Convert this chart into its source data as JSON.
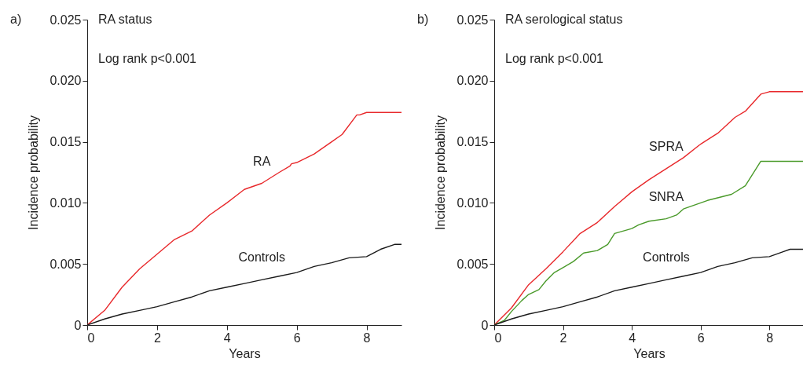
{
  "chart_data": [
    {
      "type": "line",
      "title": "RA status",
      "xlabel": "Years",
      "ylabel": "Incidence probability",
      "annotations": [
        "a)",
        "Log rank p<0.001"
      ],
      "xlim": [
        0,
        9
      ],
      "xticks": [
        0,
        2,
        4,
        6,
        8
      ],
      "ylim": [
        0,
        0.025
      ],
      "yticks": [
        {
          "value": 0,
          "label": "0"
        },
        0.005,
        {
          "value": 0.01,
          "label": "0.010"
        },
        0.015,
        {
          "value": 0.02,
          "label": "0.020"
        },
        0.025
      ],
      "grid": false,
      "legend": false,
      "series": [
        {
          "name": "RA",
          "color": "#e8282b",
          "x": [
            0,
            0.5,
            1,
            1.5,
            2,
            2.5,
            3,
            3.5,
            4,
            4.5,
            5,
            5.5,
            5.8,
            5.85,
            6,
            6.5,
            7,
            7.3,
            7.72,
            7.8,
            8,
            9
          ],
          "values": [
            0,
            0.0012,
            0.0031,
            0.0046,
            0.0058,
            0.007,
            0.0077,
            0.009,
            0.01,
            0.0111,
            0.0116,
            0.0125,
            0.013,
            0.0132,
            0.0133,
            0.014,
            0.015,
            0.0156,
            0.0172,
            0.0172,
            0.0174,
            0.0174
          ]
        },
        {
          "name": "Controls",
          "color": "#1a1a1a",
          "x": [
            0,
            0.5,
            1,
            1.5,
            2,
            2.5,
            3,
            3.5,
            4,
            4.5,
            5,
            5.5,
            6,
            6.5,
            7,
            7.5,
            8,
            8.4,
            8.8,
            9
          ],
          "values": [
            0,
            0.0005,
            0.0009,
            0.0012,
            0.0015,
            0.0019,
            0.0023,
            0.0028,
            0.0031,
            0.0034,
            0.0037,
            0.004,
            0.0043,
            0.0048,
            0.0051,
            0.0055,
            0.0056,
            0.0062,
            0.0066,
            0.0066
          ]
        }
      ]
    },
    {
      "type": "line",
      "title": "RA serological status",
      "xlabel": "Years",
      "ylabel": "Incidence probability",
      "annotations": [
        "b)",
        "Log rank p<0.001"
      ],
      "xlim": [
        0,
        9
      ],
      "xticks": [
        0,
        2,
        4,
        6,
        8
      ],
      "ylim": [
        0,
        0.025
      ],
      "yticks": [
        {
          "value": 0,
          "label": "0"
        },
        0.005,
        {
          "value": 0.01,
          "label": "0.010"
        },
        0.015,
        {
          "value": 0.02,
          "label": "0.020"
        },
        0.025
      ],
      "grid": false,
      "legend": false,
      "series": [
        {
          "name": "SPRA",
          "color": "#e8282b",
          "x": [
            0,
            0.5,
            1,
            1.5,
            2,
            2.5,
            3,
            3.5,
            4,
            4.5,
            5,
            5.5,
            5.95,
            6,
            6.5,
            7,
            7.3,
            7.75,
            8,
            9
          ],
          "values": [
            0,
            0.0014,
            0.0033,
            0.0046,
            0.006,
            0.0075,
            0.0084,
            0.0097,
            0.0109,
            0.0119,
            0.0128,
            0.0137,
            0.0147,
            0.0148,
            0.0157,
            0.017,
            0.0175,
            0.0189,
            0.0191,
            0.0191
          ]
        },
        {
          "name": "SNRA",
          "color": "#4a9a2a",
          "x": [
            0,
            0.3,
            0.5,
            0.8,
            1,
            1.3,
            1.5,
            1.75,
            2,
            2.3,
            2.6,
            3,
            3.3,
            3.5,
            4,
            4.2,
            4.5,
            5,
            5.3,
            5.5,
            6.2,
            6.9,
            7.3,
            7.75,
            9
          ],
          "values": [
            0,
            0.0004,
            0.0011,
            0.002,
            0.0025,
            0.0029,
            0.0036,
            0.0043,
            0.0047,
            0.0052,
            0.0059,
            0.0061,
            0.0066,
            0.0075,
            0.0079,
            0.0082,
            0.0085,
            0.0087,
            0.009,
            0.0095,
            0.0102,
            0.0107,
            0.0114,
            0.0134,
            0.0134
          ]
        },
        {
          "name": "Controls",
          "color": "#1a1a1a",
          "x": [
            0,
            0.5,
            1,
            1.5,
            2,
            2.5,
            3,
            3.5,
            4,
            4.5,
            5,
            5.5,
            6,
            6.5,
            7,
            7.5,
            8,
            8.4,
            8.6,
            9
          ],
          "values": [
            0,
            0.0005,
            0.0009,
            0.0012,
            0.0015,
            0.0019,
            0.0023,
            0.0028,
            0.0031,
            0.0034,
            0.0037,
            0.004,
            0.0043,
            0.0048,
            0.0051,
            0.0055,
            0.0056,
            0.006,
            0.0062,
            0.0062
          ]
        }
      ]
    }
  ]
}
